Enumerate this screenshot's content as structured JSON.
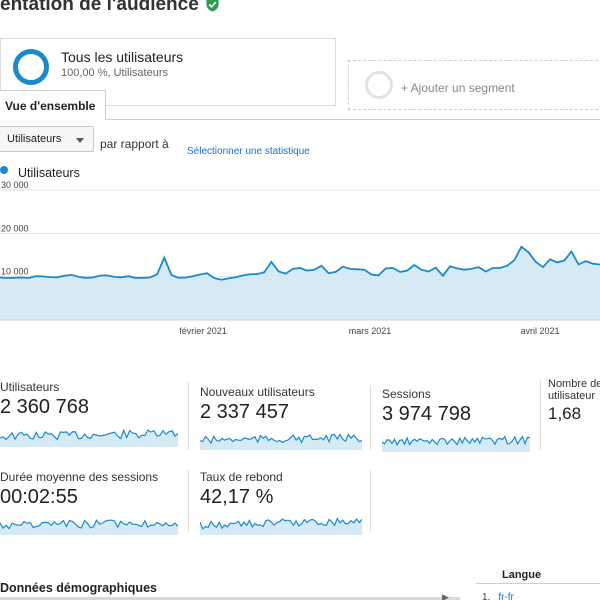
{
  "header": {
    "title": "entation de l'audience"
  },
  "segments": {
    "active": {
      "name": "Tous les utilisateurs",
      "sub": "100,00 %, Utilisateurs"
    },
    "add_label": "+ Ajouter un segment"
  },
  "tabs": [
    {
      "label": "Vue d'ensemble"
    }
  ],
  "controls": {
    "metric_select": "Utilisateurs",
    "compare_label": "par rapport à",
    "select_stat_link": "Sélectionner une statistique"
  },
  "colors": {
    "accent": "#1a8bc9",
    "fill": "#d6eaf6",
    "check": "#2e9b4f"
  },
  "chart_data": {
    "type": "area",
    "series": [
      {
        "name": "Utilisateurs",
        "values": [
          9800,
          9700,
          9750,
          9800,
          9700,
          10100,
          10050,
          9900,
          9850,
          10200,
          10400,
          9950,
          9750,
          9800,
          10250,
          10300,
          9950,
          9850,
          10100,
          9700,
          9750,
          9800,
          10550,
          14400,
          10400,
          9750,
          9800,
          10100,
          10500,
          10800,
          9650,
          9300,
          9600,
          9850,
          10300,
          10550,
          10600,
          11000,
          13400,
          11200,
          10700,
          11800,
          12000,
          11400,
          11600,
          12500,
          10800,
          11100,
          12300,
          11800,
          11700,
          11600,
          10500,
          10300,
          11900,
          12000,
          11100,
          11400,
          12700,
          11600,
          11200,
          12100,
          10200,
          12400,
          11900,
          11600,
          11800,
          12200,
          11200,
          12000,
          12000,
          12500,
          13800,
          16900,
          15600,
          13400,
          12200,
          14000,
          13300,
          13700,
          15800,
          12800,
          13600,
          13000,
          12800
        ]
      }
    ],
    "yticks": [
      "30 000",
      "20 000",
      "10 000"
    ],
    "xticks": [
      "février 2021",
      "mars 2021",
      "avril 2021"
    ],
    "grid": true
  },
  "metrics": [
    {
      "label": "Utilisateurs",
      "value": "2 360 768"
    },
    {
      "label": "Nouveaux utilisateurs",
      "value": "2 337 457"
    },
    {
      "label": "Sessions",
      "value": "3 974 798"
    },
    {
      "label": "Nombre de",
      "label2": "utilisateur",
      "value": "1,68"
    },
    {
      "label": "Durée moyenne des sessions",
      "value": "00:02:55"
    },
    {
      "label": "Taux de rebond",
      "value": "42,17 %"
    }
  ],
  "demographics": {
    "title": "Données démographiques"
  },
  "language": {
    "title": "Langue",
    "rows": [
      {
        "n": "1.",
        "value": "fr-fr"
      }
    ]
  }
}
